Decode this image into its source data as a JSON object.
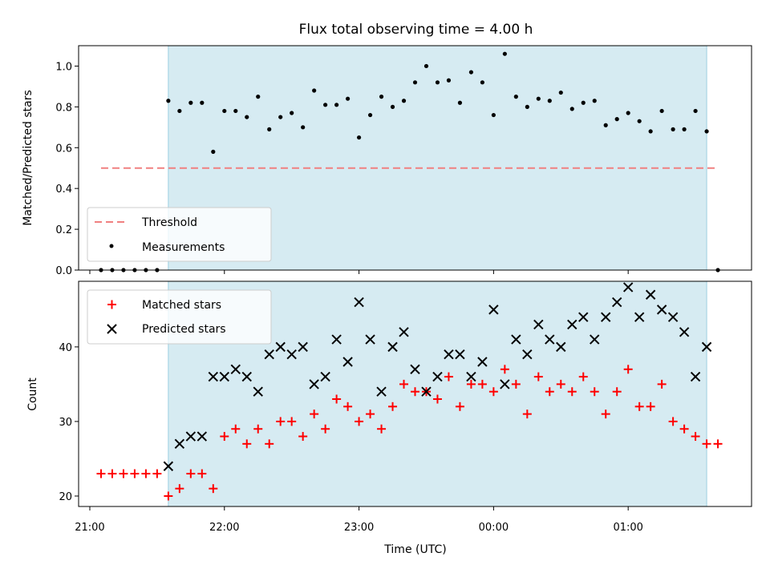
{
  "chart_data": [
    {
      "type": "scatter",
      "title": "Flux total observing time = 4.00 h",
      "xlabel": "",
      "ylabel": "Matched/Predicted stars",
      "ylim": [
        0,
        1.1
      ],
      "yticks": [
        "0.0",
        "0.2",
        "0.4",
        "0.6",
        "0.8",
        "1.0"
      ],
      "observing_window": [
        "21:35",
        "01:35"
      ],
      "threshold": {
        "name": "Threshold",
        "value": 0.5,
        "x_range": [
          "21:05",
          "01:40"
        ],
        "color": "#f08080"
      },
      "series": [
        {
          "name": "Measurements",
          "color": "#000000",
          "x": [
            "21:05",
            "21:10",
            "21:15",
            "21:20",
            "21:25",
            "21:30",
            "21:35",
            "21:40",
            "21:45",
            "21:50",
            "21:55",
            "22:00",
            "22:05",
            "22:10",
            "22:15",
            "22:20",
            "22:25",
            "22:30",
            "22:35",
            "22:40",
            "22:45",
            "22:50",
            "22:55",
            "23:00",
            "23:05",
            "23:10",
            "23:15",
            "23:20",
            "23:25",
            "23:30",
            "23:35",
            "23:40",
            "23:45",
            "23:50",
            "23:55",
            "00:00",
            "00:05",
            "00:10",
            "00:15",
            "00:20",
            "00:25",
            "00:30",
            "00:35",
            "00:40",
            "00:45",
            "00:50",
            "00:55",
            "01:00",
            "01:05",
            "01:10",
            "01:15",
            "01:20",
            "01:25",
            "01:30",
            "01:35",
            "01:40"
          ],
          "y": [
            0,
            0,
            0,
            0,
            0,
            0,
            0.83,
            0.78,
            0.82,
            0.82,
            0.58,
            0.78,
            0.78,
            0.75,
            0.85,
            0.69,
            0.75,
            0.77,
            0.7,
            0.88,
            0.81,
            0.81,
            0.84,
            0.65,
            0.76,
            0.85,
            0.8,
            0.83,
            0.92,
            1.0,
            0.92,
            0.93,
            0.82,
            0.97,
            0.92,
            0.76,
            1.06,
            0.85,
            0.8,
            0.84,
            0.83,
            0.87,
            0.79,
            0.82,
            0.83,
            0.71,
            0.74,
            0.77,
            0.73,
            0.68,
            0.78,
            0.69,
            0.69,
            0.78,
            0.68,
            0
          ]
        }
      ],
      "legend_position": "lower-left"
    },
    {
      "type": "scatter",
      "title": "",
      "xlabel": "Time (UTC)",
      "ylabel": "Count",
      "ylim": [
        18.6,
        48.8
      ],
      "yticks": [
        "20",
        "30",
        "40"
      ],
      "xticks": [
        "21:00",
        "22:00",
        "23:00",
        "00:00",
        "01:00"
      ],
      "x_range": [
        "20:55",
        "01:55"
      ],
      "series": [
        {
          "name": "Matched stars",
          "marker": "plus",
          "color": "#ff0000",
          "x": [
            "21:05",
            "21:10",
            "21:15",
            "21:20",
            "21:25",
            "21:30",
            "21:35",
            "21:40",
            "21:45",
            "21:50",
            "21:55",
            "22:00",
            "22:05",
            "22:10",
            "22:15",
            "22:20",
            "22:25",
            "22:30",
            "22:35",
            "22:40",
            "22:45",
            "22:50",
            "22:55",
            "23:00",
            "23:05",
            "23:10",
            "23:15",
            "23:20",
            "23:25",
            "23:30",
            "23:35",
            "23:40",
            "23:45",
            "23:50",
            "23:55",
            "00:00",
            "00:05",
            "00:10",
            "00:15",
            "00:20",
            "00:25",
            "00:30",
            "00:35",
            "00:40",
            "00:45",
            "00:50",
            "00:55",
            "01:00",
            "01:05",
            "01:10",
            "01:15",
            "01:20",
            "01:25",
            "01:30",
            "01:35",
            "01:40"
          ],
          "y": [
            23,
            23,
            23,
            23,
            23,
            23,
            20,
            21,
            23,
            23,
            21,
            28,
            29,
            27,
            29,
            27,
            30,
            30,
            28,
            31,
            29,
            33,
            32,
            30,
            31,
            29,
            32,
            35,
            34,
            34,
            33,
            36,
            32,
            35,
            35,
            34,
            37,
            35,
            31,
            36,
            34,
            35,
            34,
            36,
            34,
            31,
            34,
            37,
            32,
            32,
            35,
            30,
            29,
            28,
            27,
            27
          ]
        },
        {
          "name": "Predicted stars",
          "marker": "cross",
          "color": "#000000",
          "x": [
            "21:35",
            "21:40",
            "21:45",
            "21:50",
            "21:55",
            "22:00",
            "22:05",
            "22:10",
            "22:15",
            "22:20",
            "22:25",
            "22:30",
            "22:35",
            "22:40",
            "22:45",
            "22:50",
            "22:55",
            "23:00",
            "23:05",
            "23:10",
            "23:15",
            "23:20",
            "23:25",
            "23:30",
            "23:35",
            "23:40",
            "23:45",
            "23:50",
            "23:55",
            "00:00",
            "00:05",
            "00:10",
            "00:15",
            "00:20",
            "00:25",
            "00:30",
            "00:35",
            "00:40",
            "00:45",
            "00:50",
            "00:55",
            "01:00",
            "01:05",
            "01:10",
            "01:15",
            "01:20",
            "01:25",
            "01:30",
            "01:35"
          ],
          "y": [
            24,
            27,
            28,
            28,
            36,
            36,
            37,
            36,
            34,
            39,
            40,
            39,
            40,
            35,
            36,
            41,
            38,
            46,
            41,
            34,
            40,
            42,
            37,
            34,
            36,
            39,
            39,
            36,
            38,
            45,
            35,
            41,
            39,
            43,
            41,
            40,
            43,
            44,
            41,
            44,
            46,
            48,
            44,
            47,
            45,
            44,
            42,
            36,
            40
          ]
        }
      ],
      "legend_position": "upper-left"
    }
  ]
}
